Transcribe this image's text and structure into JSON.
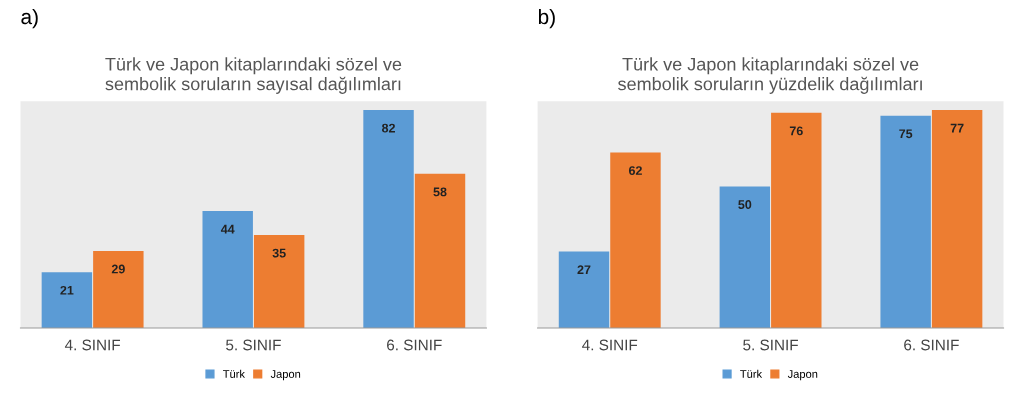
{
  "chart_data": [
    {
      "type": "bar",
      "title": "Türk ve Japon kitaplarındaki sözel ve\nsembolik soruların sayısal dağılımları",
      "annotations": [
        "a)"
      ],
      "categories": [
        "4. SINIF",
        "5. SINIF",
        "6. SINIF"
      ],
      "series": [
        {
          "name": "Türk",
          "color": "#5b9bd5",
          "values": [
            21,
            44,
            82
          ]
        },
        {
          "name": "Japon",
          "color": "#ed7d31",
          "values": [
            29,
            35,
            58
          ]
        }
      ],
      "data_labels": true,
      "legend": "bottom"
    },
    {
      "type": "bar",
      "title": "Türk ve Japon kitaplarındaki sözel ve\nsembolik soruların yüzdelik dağılımları",
      "annotations": [
        "b)"
      ],
      "categories": [
        "4. SINIF",
        "5. SINIF",
        "6. SINIF"
      ],
      "series": [
        {
          "name": "Türk",
          "color": "#5b9bd5",
          "values": [
            27,
            50,
            75
          ]
        },
        {
          "name": "Japon",
          "color": "#ed7d31",
          "values": [
            62,
            76,
            77
          ]
        }
      ],
      "data_labels": true,
      "legend": "bottom"
    }
  ]
}
